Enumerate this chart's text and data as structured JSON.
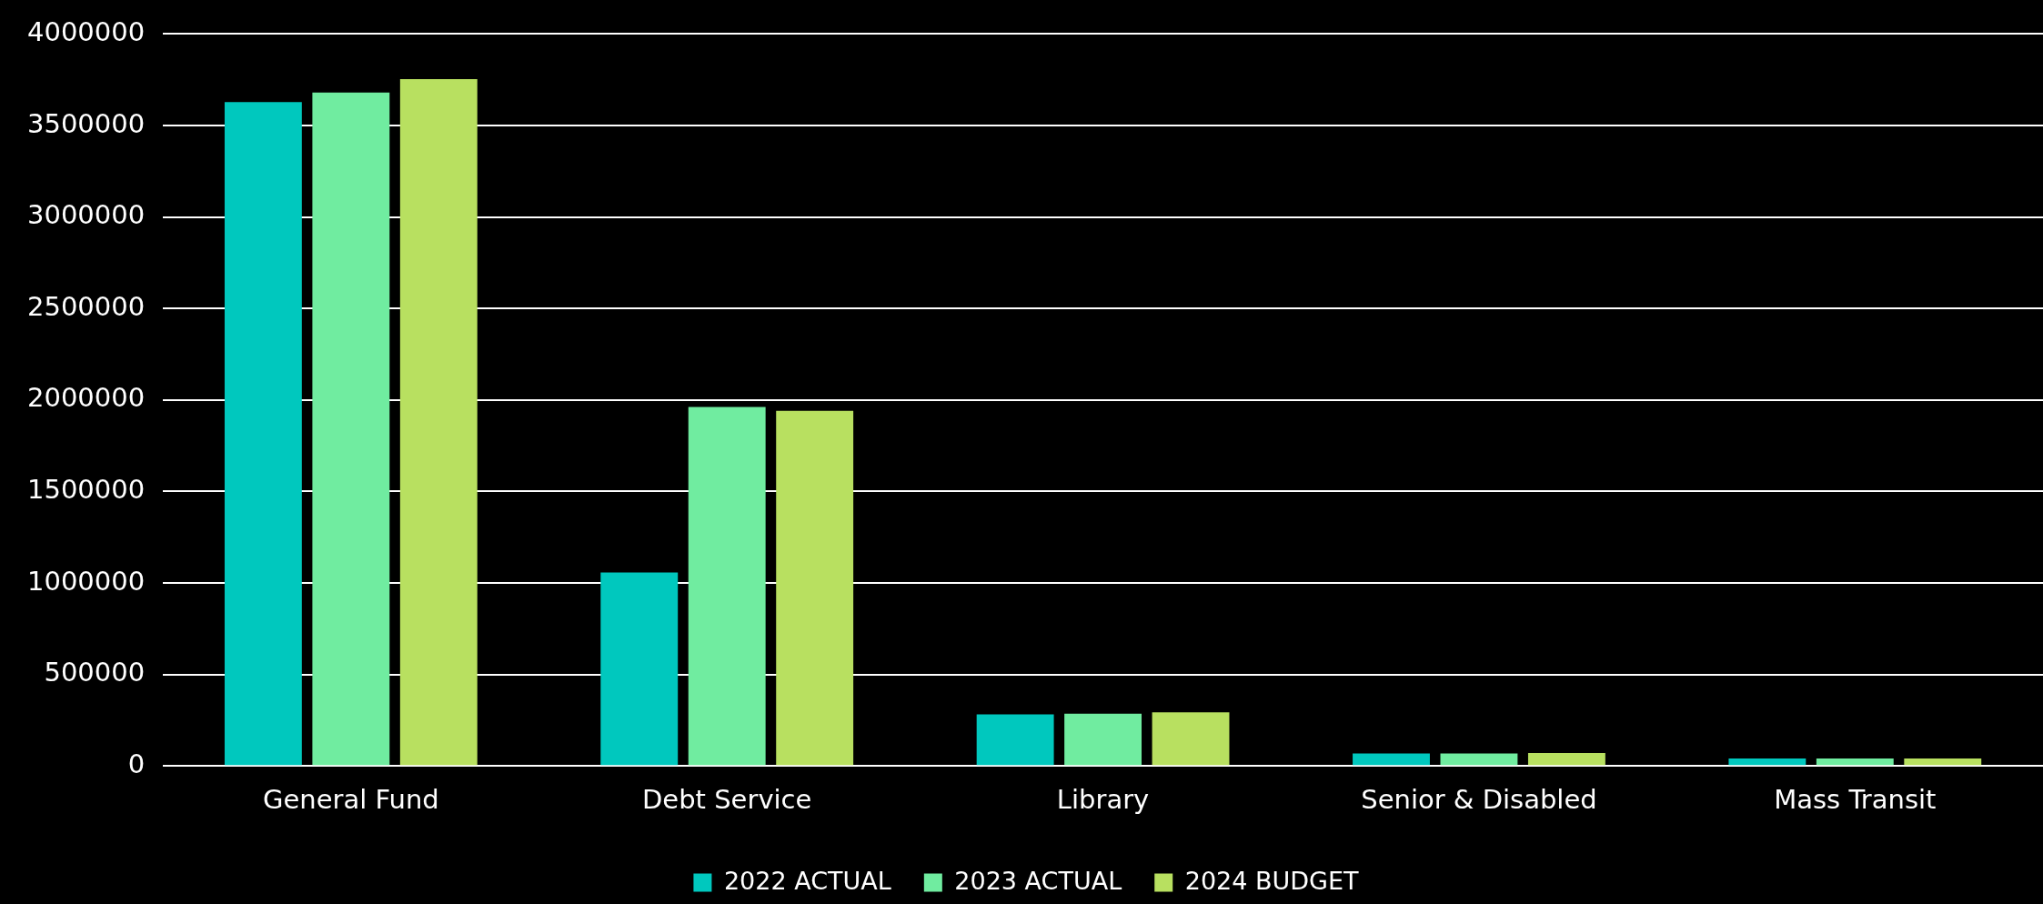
{
  "chart_data": {
    "type": "bar",
    "categories": [
      "General Fund",
      "Debt Service",
      "Library",
      "Senior & Disabled",
      "Mass Transit"
    ],
    "series": [
      {
        "name": "2022 ACTUAL",
        "color": "#00c8be",
        "values": [
          3628000,
          1057000,
          282000,
          68000,
          41000
        ]
      },
      {
        "name": "2023 ACTUAL",
        "color": "#70eca0",
        "values": [
          3680000,
          1962000,
          286000,
          68000,
          41000
        ]
      },
      {
        "name": "2024 BUDGET",
        "color": "#b8e060",
        "values": [
          3753000,
          1940000,
          293000,
          71000,
          41000
        ]
      }
    ],
    "ylim": [
      0,
      4000000
    ],
    "yticks": [
      0,
      500000,
      1000000,
      1500000,
      2000000,
      2500000,
      3000000,
      3500000,
      4000000
    ],
    "grid": "y",
    "legend": "bottom"
  }
}
